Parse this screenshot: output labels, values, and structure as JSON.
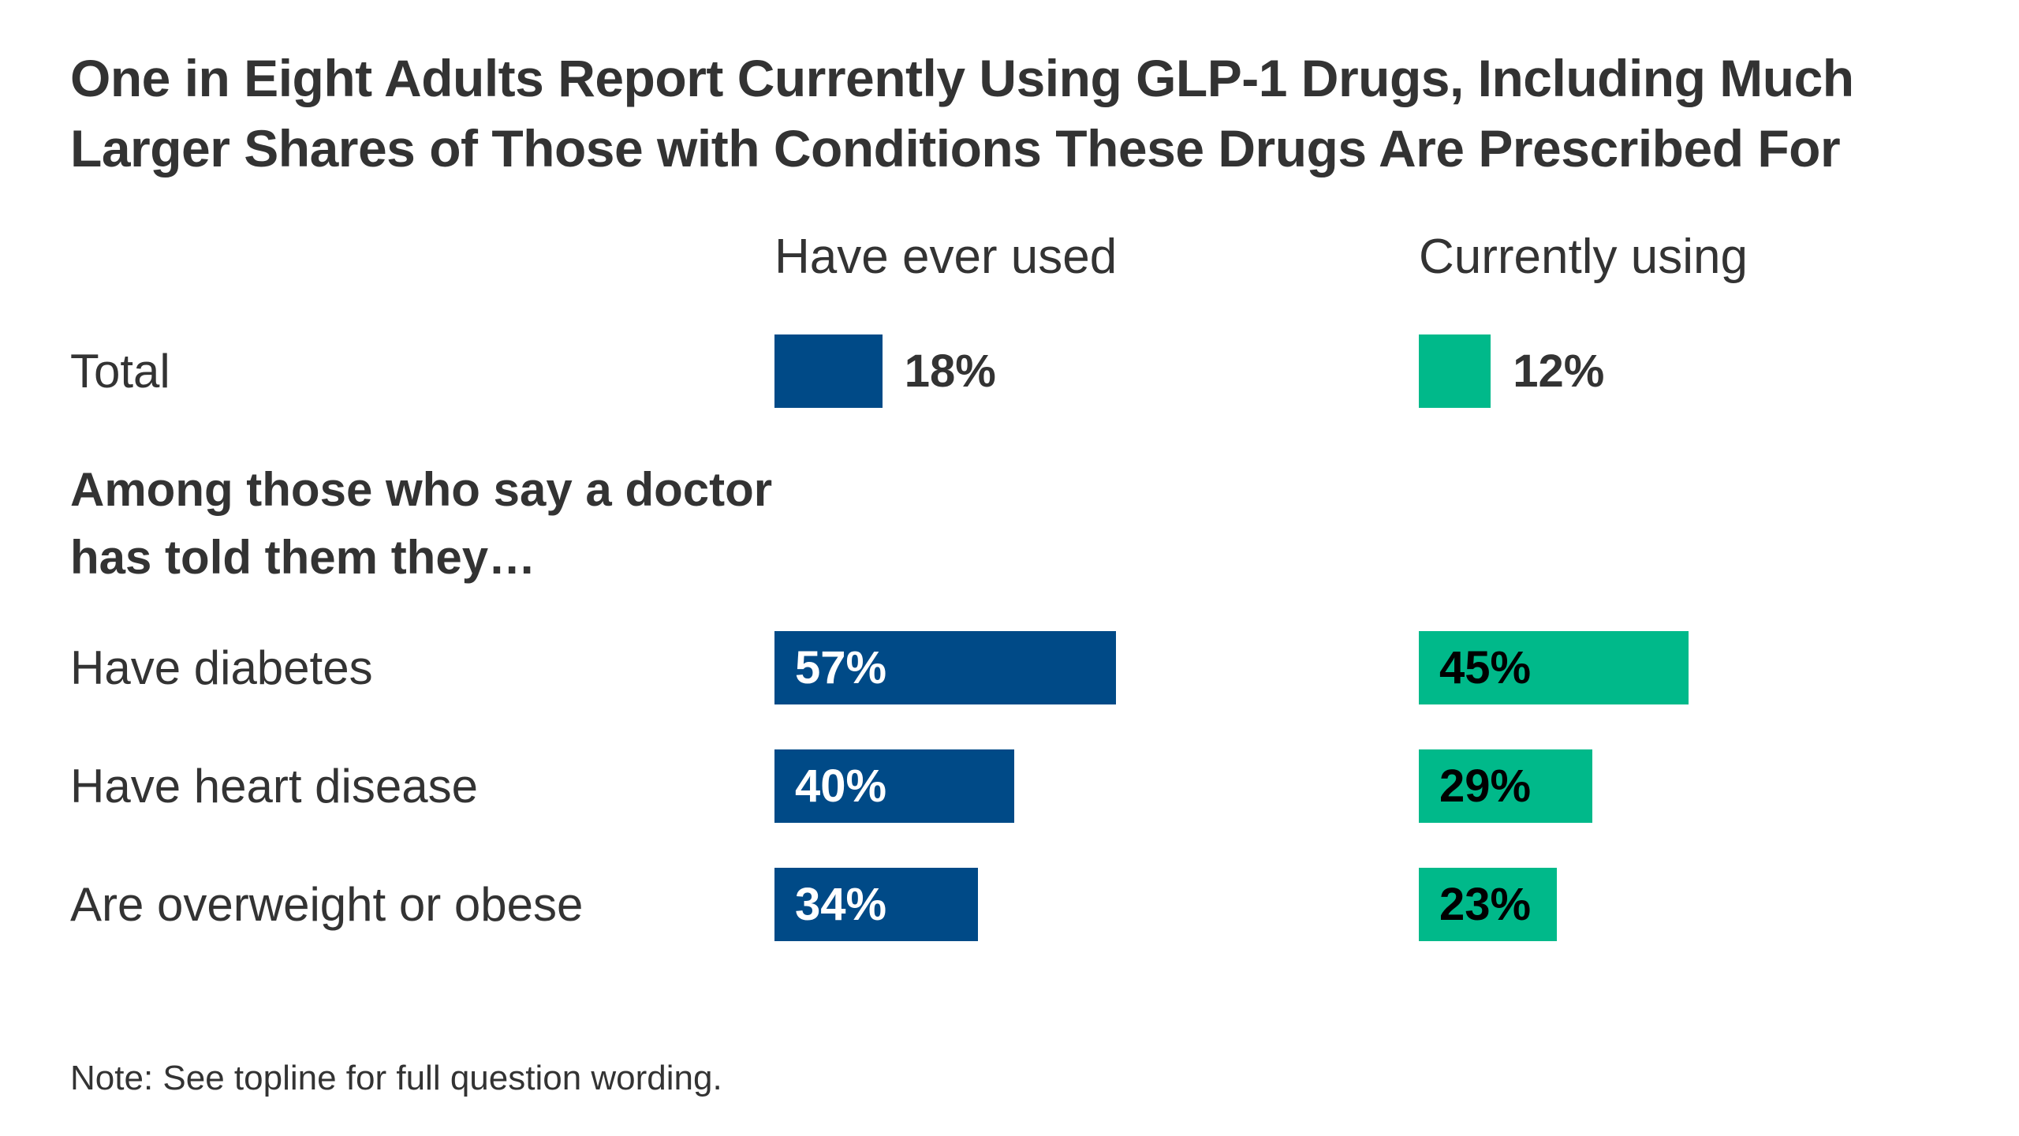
{
  "chart_data": {
    "type": "bar",
    "title": "One in Eight Adults Report Currently Using GLP-1 Drugs, Including Much Larger Shares of Those with Conditions These Drugs Are Prescribed For",
    "subheading": "Among those who say a doctor has told them they…",
    "categories": [
      "Total",
      "Have diabetes",
      "Have heart disease",
      "Are overweight or obese"
    ],
    "series": [
      {
        "name": "Have ever used",
        "color": "#004a87",
        "label_color": "#ffffff",
        "values": [
          18,
          57,
          40,
          34
        ],
        "labels": [
          "18%",
          "57%",
          "40%",
          "34%"
        ]
      },
      {
        "name": "Currently using",
        "color": "#00b98a",
        "label_color": "#000000",
        "values": [
          12,
          45,
          29,
          23
        ],
        "labels": [
          "12%",
          "45%",
          "29%",
          "23%"
        ]
      }
    ],
    "unit": "%",
    "grid": false,
    "legend": "column headers",
    "note": "Note: See topline for full question wording."
  }
}
